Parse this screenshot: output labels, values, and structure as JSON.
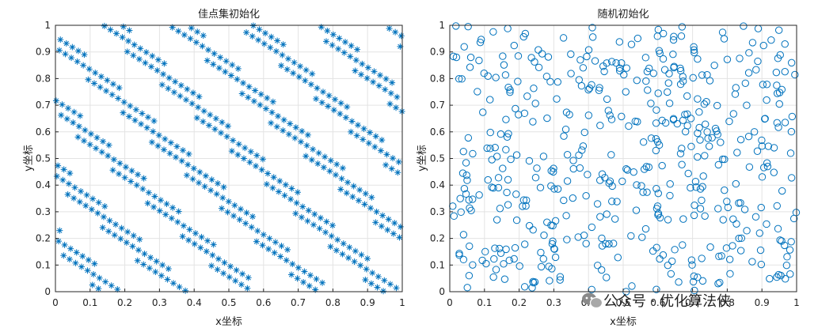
{
  "chart_data": [
    {
      "type": "scatter",
      "title": "佳点集初始化",
      "xlabel": "x坐标",
      "ylabel": "y坐标",
      "xlim": [
        0,
        1
      ],
      "ylim": [
        0,
        1
      ],
      "xticks": [
        "0",
        "0.1",
        "0.2",
        "0.3",
        "0.4",
        "0.5",
        "0.6",
        "0.7",
        "0.8",
        "0.9",
        "1"
      ],
      "yticks": [
        "0",
        "0.1",
        "0.2",
        "0.3",
        "0.4",
        "0.5",
        "0.6",
        "0.7",
        "0.8",
        "0.9",
        "1"
      ],
      "grid": true,
      "marker": "asterisk",
      "color": "#0072BD",
      "n_points": 500,
      "point_set": "good point set sequence ({k·√2}, {k·√3}), k = 1 … 500"
    },
    {
      "type": "scatter",
      "title": "随机初始化",
      "xlabel": "x坐标",
      "ylabel": "y坐标",
      "xlim": [
        0,
        1
      ],
      "ylim": [
        0,
        1
      ],
      "xticks": [
        "0",
        "0.1",
        "0.2",
        "0.3",
        "0.4",
        "0.5",
        "0.6",
        "0.7",
        "0.8",
        "0.9",
        "1"
      ],
      "yticks": [
        "0",
        "0.1",
        "0.2",
        "0.3",
        "0.4",
        "0.5",
        "0.6",
        "0.7",
        "0.8",
        "0.9",
        "1"
      ],
      "grid": true,
      "marker": "circle",
      "color": "#0072BD",
      "n_points": 500,
      "point_set": "uniform random points on [0,1]×[0,1]"
    }
  ],
  "watermark": {
    "text": "公众号 · 优化算法侠",
    "icon": "wechat-icon"
  }
}
